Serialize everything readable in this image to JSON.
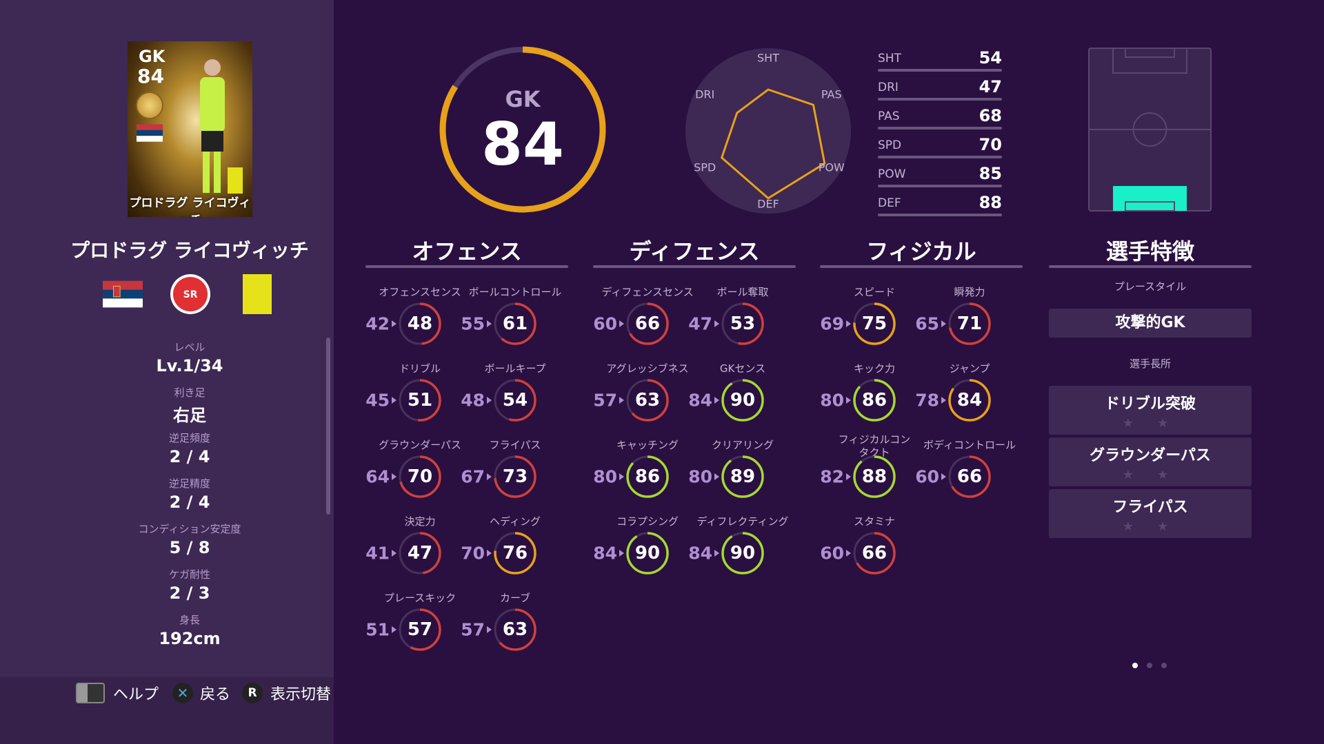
{
  "card": {
    "position": "GK",
    "rating": "84",
    "name": "プロドラグ ライコヴィッチ"
  },
  "player": {
    "name": "プロドラグ ライコヴィッチ"
  },
  "info": [
    {
      "label": "レベル",
      "value": "Lv.1/34"
    },
    {
      "label": "利き足",
      "value": "右足"
    },
    {
      "label": "逆足頻度",
      "value": "2 / 4"
    },
    {
      "label": "逆足精度",
      "value": "2 / 4"
    },
    {
      "label": "コンディション安定度",
      "value": "5 / 8"
    },
    {
      "label": "ケガ耐性",
      "value": "2 / 3"
    },
    {
      "label": "身長",
      "value": "192cm"
    }
  ],
  "overall": {
    "position": "GK",
    "rating": "84",
    "color": "#e7a11a"
  },
  "radar": {
    "labels": [
      "SHT",
      "PAS",
      "POW",
      "DEF",
      "SPD",
      "DRI"
    ],
    "values": [
      54,
      68,
      85,
      88,
      70,
      47
    ]
  },
  "stats": [
    {
      "label": "SHT",
      "value": "54"
    },
    {
      "label": "DRI",
      "value": "47"
    },
    {
      "label": "PAS",
      "value": "68"
    },
    {
      "label": "SPD",
      "value": "70"
    },
    {
      "label": "POW",
      "value": "85"
    },
    {
      "label": "DEF",
      "value": "88"
    }
  ],
  "colors": {
    "low": "#d0413c",
    "mid": "#e7a11a",
    "high": "#a6d930",
    "accent": "#19f0c8"
  },
  "sections": [
    {
      "title": "オフェンス",
      "abilities": [
        {
          "label": "オフェンスセンス",
          "old": "42",
          "new": "48"
        },
        {
          "label": "ボールコントロール",
          "old": "55",
          "new": "61"
        },
        {
          "label": "ドリブル",
          "old": "45",
          "new": "51"
        },
        {
          "label": "ボールキープ",
          "old": "48",
          "new": "54"
        },
        {
          "label": "グラウンダーパス",
          "old": "64",
          "new": "70"
        },
        {
          "label": "フライパス",
          "old": "67",
          "new": "73"
        },
        {
          "label": "決定力",
          "old": "41",
          "new": "47"
        },
        {
          "label": "ヘディング",
          "old": "70",
          "new": "76"
        },
        {
          "label": "プレースキック",
          "old": "51",
          "new": "57"
        },
        {
          "label": "カーブ",
          "old": "57",
          "new": "63"
        }
      ]
    },
    {
      "title": "ディフェンス",
      "abilities": [
        {
          "label": "ディフェンスセンス",
          "old": "60",
          "new": "66"
        },
        {
          "label": "ボール奪取",
          "old": "47",
          "new": "53"
        },
        {
          "label": "アグレッシブネス",
          "old": "57",
          "new": "63"
        },
        {
          "label": "GKセンス",
          "old": "84",
          "new": "90"
        },
        {
          "label": "キャッチング",
          "old": "80",
          "new": "86"
        },
        {
          "label": "クリアリング",
          "old": "80",
          "new": "89"
        },
        {
          "label": "コラプシング",
          "old": "84",
          "new": "90"
        },
        {
          "label": "ディフレクティング",
          "old": "84",
          "new": "90"
        }
      ]
    },
    {
      "title": "フィジカル",
      "abilities": [
        {
          "label": "スピード",
          "old": "69",
          "new": "75"
        },
        {
          "label": "瞬発力",
          "old": "65",
          "new": "71"
        },
        {
          "label": "キック力",
          "old": "80",
          "new": "86"
        },
        {
          "label": "ジャンプ",
          "old": "78",
          "new": "84"
        },
        {
          "label": "フィジカルコンタクト",
          "old": "82",
          "new": "88"
        },
        {
          "label": "ボディコントロール",
          "old": "60",
          "new": "66"
        },
        {
          "label": "スタミナ",
          "old": "60",
          "new": "66"
        }
      ]
    }
  ],
  "traits": {
    "title": "選手特徴",
    "playstyle_label": "プレースタイル",
    "playstyle": "攻撃的GK",
    "skills_label": "選手長所",
    "skills": [
      {
        "name": "ドリブル突破",
        "stars": "★ ★"
      },
      {
        "name": "グラウンダーパス",
        "stars": "★ ★"
      },
      {
        "name": "フライパス",
        "stars": "★ ★"
      }
    ]
  },
  "pagination": {
    "pages": 3,
    "current": 1
  },
  "footer": {
    "help": "ヘルプ",
    "back": "戻る",
    "toggle": "表示切替",
    "r_key": "R"
  }
}
